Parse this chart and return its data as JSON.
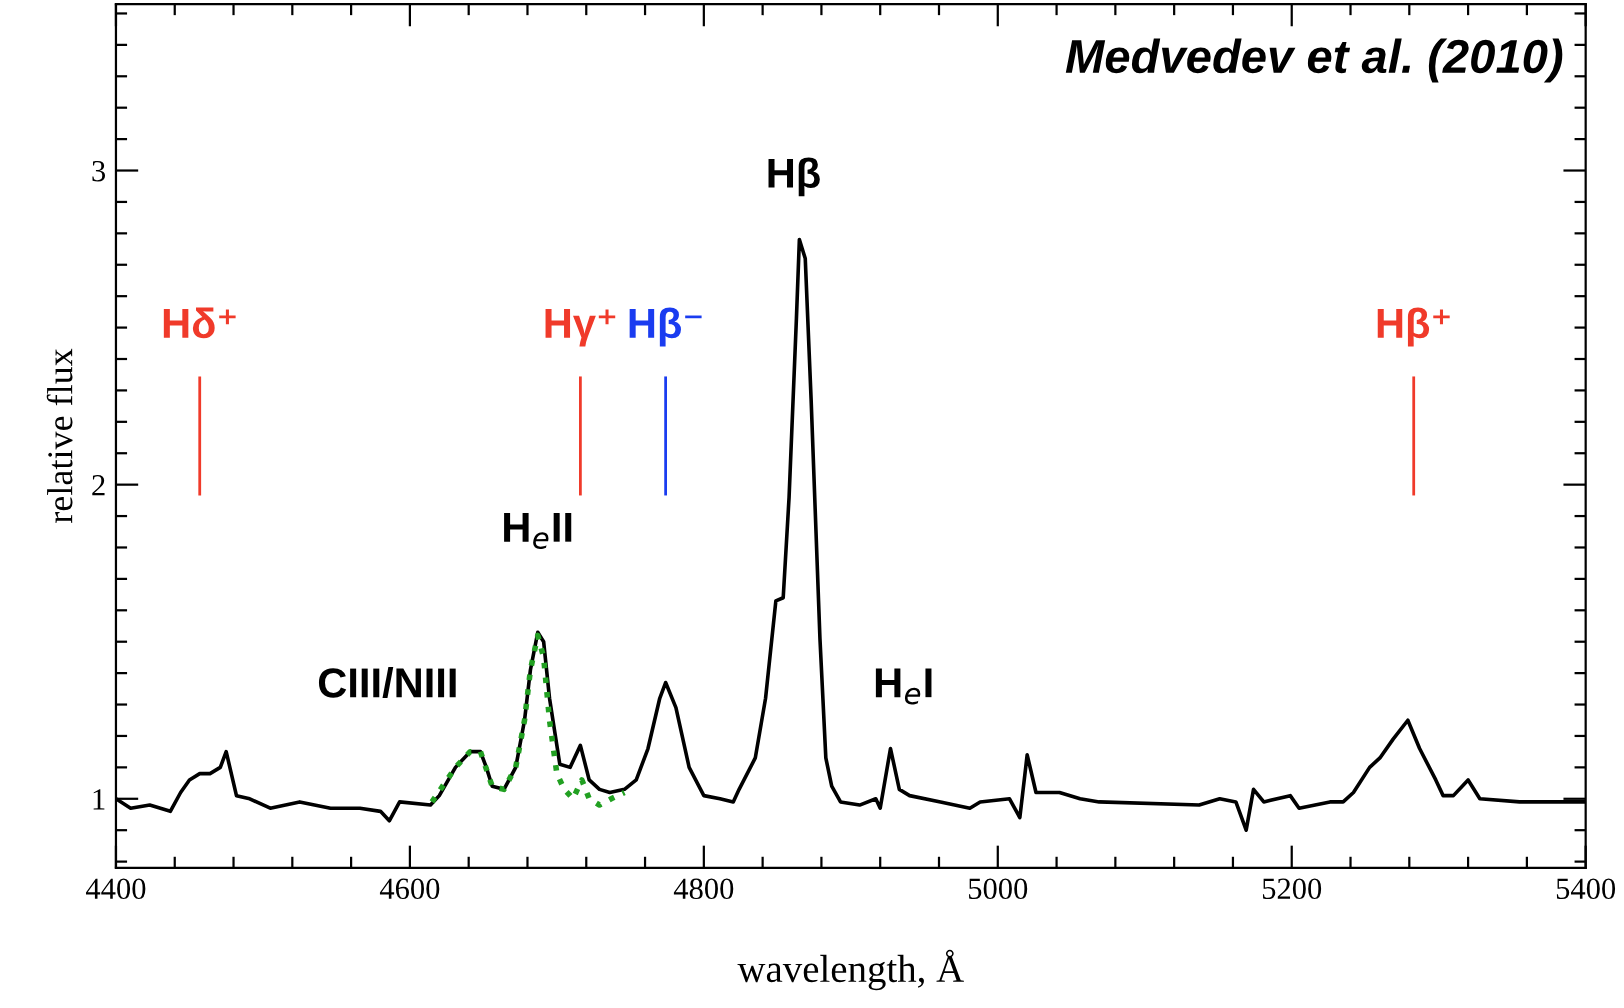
{
  "chart_data": {
    "type": "line",
    "xlabel": "wavelength, Å",
    "ylabel": "relative flux",
    "xlim": [
      4400,
      5400
    ],
    "ylim": [
      0.78,
      3.53
    ],
    "xticks": [
      4400,
      {
        "value": 4440,
        "label": null
      },
      {
        "value": 4480,
        "label": null
      },
      {
        "value": 4520,
        "label": null
      },
      {
        "value": 4560,
        "label": null
      },
      4600,
      {
        "value": 4640,
        "label": null
      },
      {
        "value": 4680,
        "label": null
      },
      {
        "value": 4720,
        "label": null
      },
      {
        "value": 4760,
        "label": null
      },
      4800,
      {
        "value": 4840,
        "label": null
      },
      {
        "value": 4880,
        "label": null
      },
      {
        "value": 4920,
        "label": null
      },
      {
        "value": 4960,
        "label": null
      },
      5000,
      {
        "value": 5040,
        "label": null
      },
      {
        "value": 5080,
        "label": null
      },
      {
        "value": 5120,
        "label": null
      },
      {
        "value": 5160,
        "label": null
      },
      5200,
      {
        "value": 5240,
        "label": null
      },
      {
        "value": 5280,
        "label": null
      },
      {
        "value": 5320,
        "label": null
      },
      {
        "value": 5360,
        "label": null
      },
      5400
    ],
    "yticks": [
      {
        "value": 0.8,
        "label": null
      },
      {
        "value": 0.9,
        "label": null
      },
      1,
      {
        "value": 1.1,
        "label": null
      },
      {
        "value": 1.2,
        "label": null
      },
      {
        "value": 1.3,
        "label": null
      },
      {
        "value": 1.4,
        "label": null
      },
      {
        "value": 1.5,
        "label": null
      },
      {
        "value": 1.6,
        "label": null
      },
      {
        "value": 1.7,
        "label": null
      },
      {
        "value": 1.8,
        "label": null
      },
      {
        "value": 1.9,
        "label": null
      },
      2,
      {
        "value": 2.1,
        "label": null
      },
      {
        "value": 2.2,
        "label": null
      },
      {
        "value": 2.3,
        "label": null
      },
      {
        "value": 2.4,
        "label": null
      },
      {
        "value": 2.5,
        "label": null
      },
      {
        "value": 2.6,
        "label": null
      },
      {
        "value": 2.7,
        "label": null
      },
      {
        "value": 2.8,
        "label": null
      },
      {
        "value": 2.9,
        "label": null
      },
      3,
      {
        "value": 3.1,
        "label": null
      },
      {
        "value": 3.2,
        "label": null
      },
      {
        "value": 3.3,
        "label": null
      },
      {
        "value": 3.4,
        "label": null
      },
      {
        "value": 3.5,
        "label": null
      }
    ],
    "grid": false,
    "legend": false,
    "series": [
      {
        "color": "#000000",
        "line_style": "solid",
        "x": [
          4400,
          4410,
          4423,
          4437,
          4444,
          4450,
          4457,
          4464,
          4471,
          4475,
          4482,
          4491,
          4505,
          4525,
          4546,
          4566,
          4580,
          4586,
          4593,
          4614,
          4620,
          4631,
          4641,
          4648,
          4652,
          4656,
          4664,
          4672,
          4678,
          4682,
          4687,
          4691,
          4695,
          4702,
          4709,
          4716,
          4722,
          4729,
          4736,
          4746,
          4754,
          4762,
          4770,
          4774,
          4781,
          4790,
          4800,
          4811,
          4820,
          4824,
          4835,
          4842,
          4849,
          4854,
          4858,
          4863,
          4865,
          4869,
          4873,
          4879,
          4883,
          4887,
          4893,
          4906,
          4917,
          4920,
          4927,
          4933,
          4940,
          4961,
          4981,
          4988,
          5008,
          5015,
          5020,
          5026,
          5042,
          5056,
          5069,
          5137,
          5151,
          5162,
          5169,
          5174,
          5181,
          5199,
          5205,
          5226,
          5235,
          5242,
          5253,
          5260,
          5269,
          5279,
          5287,
          5298,
          5303,
          5310,
          5320,
          5328,
          5355,
          5400
        ],
        "values": [
          1.0,
          0.97,
          0.98,
          0.96,
          1.02,
          1.06,
          1.08,
          1.08,
          1.1,
          1.15,
          1.01,
          1.0,
          0.97,
          0.99,
          0.97,
          0.97,
          0.96,
          0.93,
          0.99,
          0.98,
          1.01,
          1.1,
          1.15,
          1.15,
          1.1,
          1.04,
          1.03,
          1.1,
          1.25,
          1.41,
          1.53,
          1.5,
          1.32,
          1.11,
          1.1,
          1.17,
          1.06,
          1.03,
          1.02,
          1.03,
          1.06,
          1.16,
          1.32,
          1.37,
          1.29,
          1.1,
          1.01,
          1.0,
          0.99,
          1.03,
          1.13,
          1.32,
          1.63,
          1.64,
          1.96,
          2.53,
          2.78,
          2.72,
          2.27,
          1.51,
          1.13,
          1.04,
          0.99,
          0.98,
          1.0,
          0.97,
          1.16,
          1.03,
          1.01,
          0.99,
          0.97,
          0.99,
          1.0,
          0.94,
          1.14,
          1.02,
          1.02,
          1.0,
          0.99,
          0.98,
          1.0,
          0.99,
          0.9,
          1.03,
          0.99,
          1.01,
          0.97,
          0.99,
          0.99,
          1.02,
          1.1,
          1.13,
          1.19,
          1.25,
          1.16,
          1.06,
          1.01,
          1.01,
          1.06,
          1.0,
          0.99,
          0.99
        ]
      },
      {
        "color": "#22a022",
        "line_style": "dotted",
        "x": [
          4615,
          4631,
          4641,
          4648,
          4656,
          4664,
          4672,
          4678,
          4682,
          4687,
          4691,
          4695,
          4700,
          4705,
          4711,
          4717,
          4722,
          4729,
          4737,
          4746
        ],
        "values": [
          0.99,
          1.1,
          1.15,
          1.15,
          1.04,
          1.03,
          1.1,
          1.25,
          1.41,
          1.52,
          1.45,
          1.25,
          1.08,
          1.03,
          1.0,
          1.06,
          1.0,
          0.98,
          1.0,
          1.02
        ]
      },
      {
        "name": "Hδ⁺",
        "color": "#f03a2a",
        "line_style": "solid",
        "x": [
          4457,
          4457
        ],
        "values": [
          1.97,
          2.34
        ]
      },
      {
        "name": "Hγ⁺",
        "color": "#f03a2a",
        "line_style": "solid",
        "x": [
          4716,
          4716
        ],
        "values": [
          1.97,
          2.34
        ]
      },
      {
        "name": "Hβ⁻",
        "color": "#1a3cf0",
        "line_style": "solid",
        "x": [
          4774,
          4774
        ],
        "values": [
          1.97,
          2.34
        ]
      },
      {
        "name": "Hβ⁺",
        "color": "#f03a2a",
        "line_style": "solid",
        "x": [
          5283,
          5283
        ],
        "values": [
          1.97,
          2.34
        ]
      }
    ],
    "annotations": [
      "Medvedev et al. (2010)",
      "Hβ",
      "H$_{e}$II",
      "CIII/NIII",
      "H$_{e}$I"
    ]
  }
}
